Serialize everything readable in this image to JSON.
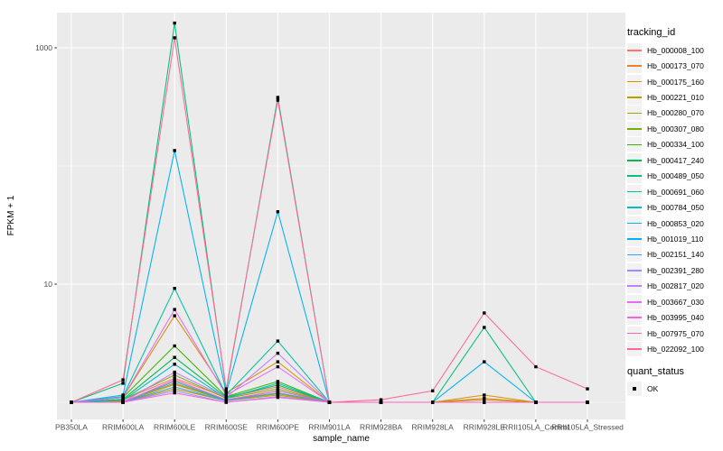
{
  "chart_data": {
    "type": "line",
    "title": "",
    "xlabel": "sample_name",
    "ylabel": "FPKM + 1",
    "y_scale": "log10",
    "grid": true,
    "legend_position": "right",
    "y_axis_ticks": [
      {
        "label": "1000",
        "value": 1000
      },
      {
        "label": "10",
        "value": 10
      }
    ],
    "y_minor_gridlines": [
      100,
      1
    ],
    "ylim": [
      0.7,
      1900
    ],
    "categories": [
      "PB350LA",
      "RRIM600LA",
      "RRIM600LE",
      "RRIM600SE",
      "RRIM600PE",
      "RRIM901LA",
      "RRIM928BA",
      "RRIM928LA",
      "RRIM928LE",
      "RRII105LA_Control",
      "RRII105LA_Stressed"
    ],
    "series": [
      {
        "name": "Hb_000008_100",
        "color": "#F8766D",
        "values": [
          1,
          1.05,
          1.6,
          1.1,
          1.35,
          1,
          1,
          1,
          1,
          1,
          1
        ]
      },
      {
        "name": "Hb_000173_070",
        "color": "#EA8331",
        "values": [
          1,
          1.02,
          1.45,
          1.05,
          1.2,
          1,
          1,
          1,
          1.05,
          1,
          1
        ]
      },
      {
        "name": "Hb_000175_160",
        "color": "#D89000",
        "values": [
          1,
          1.1,
          5.4,
          1.2,
          2.2,
          1,
          1,
          1,
          1.15,
          1,
          1
        ]
      },
      {
        "name": "Hb_000221_010",
        "color": "#C09B00",
        "values": [
          1,
          1,
          1.3,
          1.03,
          1.15,
          1,
          1,
          1,
          1.08,
          1,
          1
        ]
      },
      {
        "name": "Hb_000280_070",
        "color": "#A3A500",
        "values": [
          1,
          1,
          1.42,
          1.04,
          1.18,
          1,
          1,
          1,
          1,
          1,
          1
        ]
      },
      {
        "name": "Hb_000307_080",
        "color": "#7CAE00",
        "values": [
          1,
          1.05,
          1.7,
          1.08,
          1.3,
          1,
          1,
          1,
          1,
          1,
          1
        ]
      },
      {
        "name": "Hb_000334_100",
        "color": "#39B600",
        "values": [
          1,
          1.1,
          3.0,
          1.12,
          1.5,
          1,
          1,
          1,
          1,
          1,
          1
        ]
      },
      {
        "name": "Hb_000417_240",
        "color": "#00BB4E",
        "values": [
          1,
          1.06,
          2.4,
          1.1,
          1.4,
          1,
          1,
          1,
          1,
          1,
          1
        ]
      },
      {
        "name": "Hb_000489_050",
        "color": "#00BF7D",
        "values": [
          1,
          1.45,
          1620,
          1.25,
          380,
          1,
          1,
          1,
          4.3,
          1,
          1
        ]
      },
      {
        "name": "Hb_000691_060",
        "color": "#00C1A3",
        "values": [
          1,
          1.12,
          9.2,
          1.15,
          3.3,
          1,
          1,
          1,
          1,
          1,
          1
        ]
      },
      {
        "name": "Hb_000784_050",
        "color": "#00BFC4",
        "values": [
          1,
          1.04,
          2.1,
          1.08,
          1.45,
          1,
          1,
          1,
          1,
          1,
          1
        ]
      },
      {
        "name": "Hb_000853_020",
        "color": "#00BAE0",
        "values": [
          1,
          1,
          1.5,
          1.04,
          1.25,
          1,
          1,
          1,
          1,
          1,
          1
        ]
      },
      {
        "name": "Hb_001019_110",
        "color": "#00B0F6",
        "values": [
          1,
          1.15,
          135,
          1.2,
          41,
          1,
          1,
          1,
          2.2,
          1,
          1
        ]
      },
      {
        "name": "Hb_002151_140",
        "color": "#35A2FF",
        "values": [
          1,
          1,
          1.35,
          1.03,
          1.2,
          1,
          1,
          1,
          1,
          1,
          1
        ]
      },
      {
        "name": "Hb_002391_280",
        "color": "#9590FF",
        "values": [
          1,
          1,
          1.25,
          1,
          1.12,
          1,
          1,
          1,
          1,
          1,
          1
        ]
      },
      {
        "name": "Hb_002817_020",
        "color": "#C77CFF",
        "values": [
          1,
          1,
          1.8,
          1.1,
          2.6,
          1,
          1,
          1,
          1,
          1,
          1
        ]
      },
      {
        "name": "Hb_003667_030",
        "color": "#E76BF3",
        "values": [
          1,
          1.1,
          6.1,
          1.15,
          2.0,
          1,
          1,
          1,
          1,
          1,
          1
        ]
      },
      {
        "name": "Hb_003995_040",
        "color": "#FA62DB",
        "values": [
          1,
          1,
          1.2,
          1,
          1.1,
          1,
          1,
          1,
          1,
          1,
          1
        ]
      },
      {
        "name": "Hb_007975_070",
        "color": "#FF62BC",
        "values": [
          1,
          1,
          1.55,
          1.05,
          1.25,
          1,
          1,
          1,
          1,
          1,
          1
        ]
      },
      {
        "name": "Hb_022092_100",
        "color": "#FF6A98",
        "values": [
          1,
          1.55,
          1215,
          1.3,
          360,
          1,
          1.05,
          1.25,
          5.7,
          2.0,
          1.3
        ]
      }
    ],
    "legend": {
      "tracking_title": "tracking_id",
      "quant_title": "quant_status",
      "quant_items": [
        {
          "label": "OK",
          "marker_color": "#000000"
        }
      ]
    },
    "colors": {
      "panel_bg": "#EBEBEB",
      "grid": "#FFFFFF",
      "axis_text": "#4D4D4D",
      "axis_title": "#000000",
      "point": "#000000",
      "tick_mark": "#333333",
      "background": "#FFFFFF"
    }
  }
}
